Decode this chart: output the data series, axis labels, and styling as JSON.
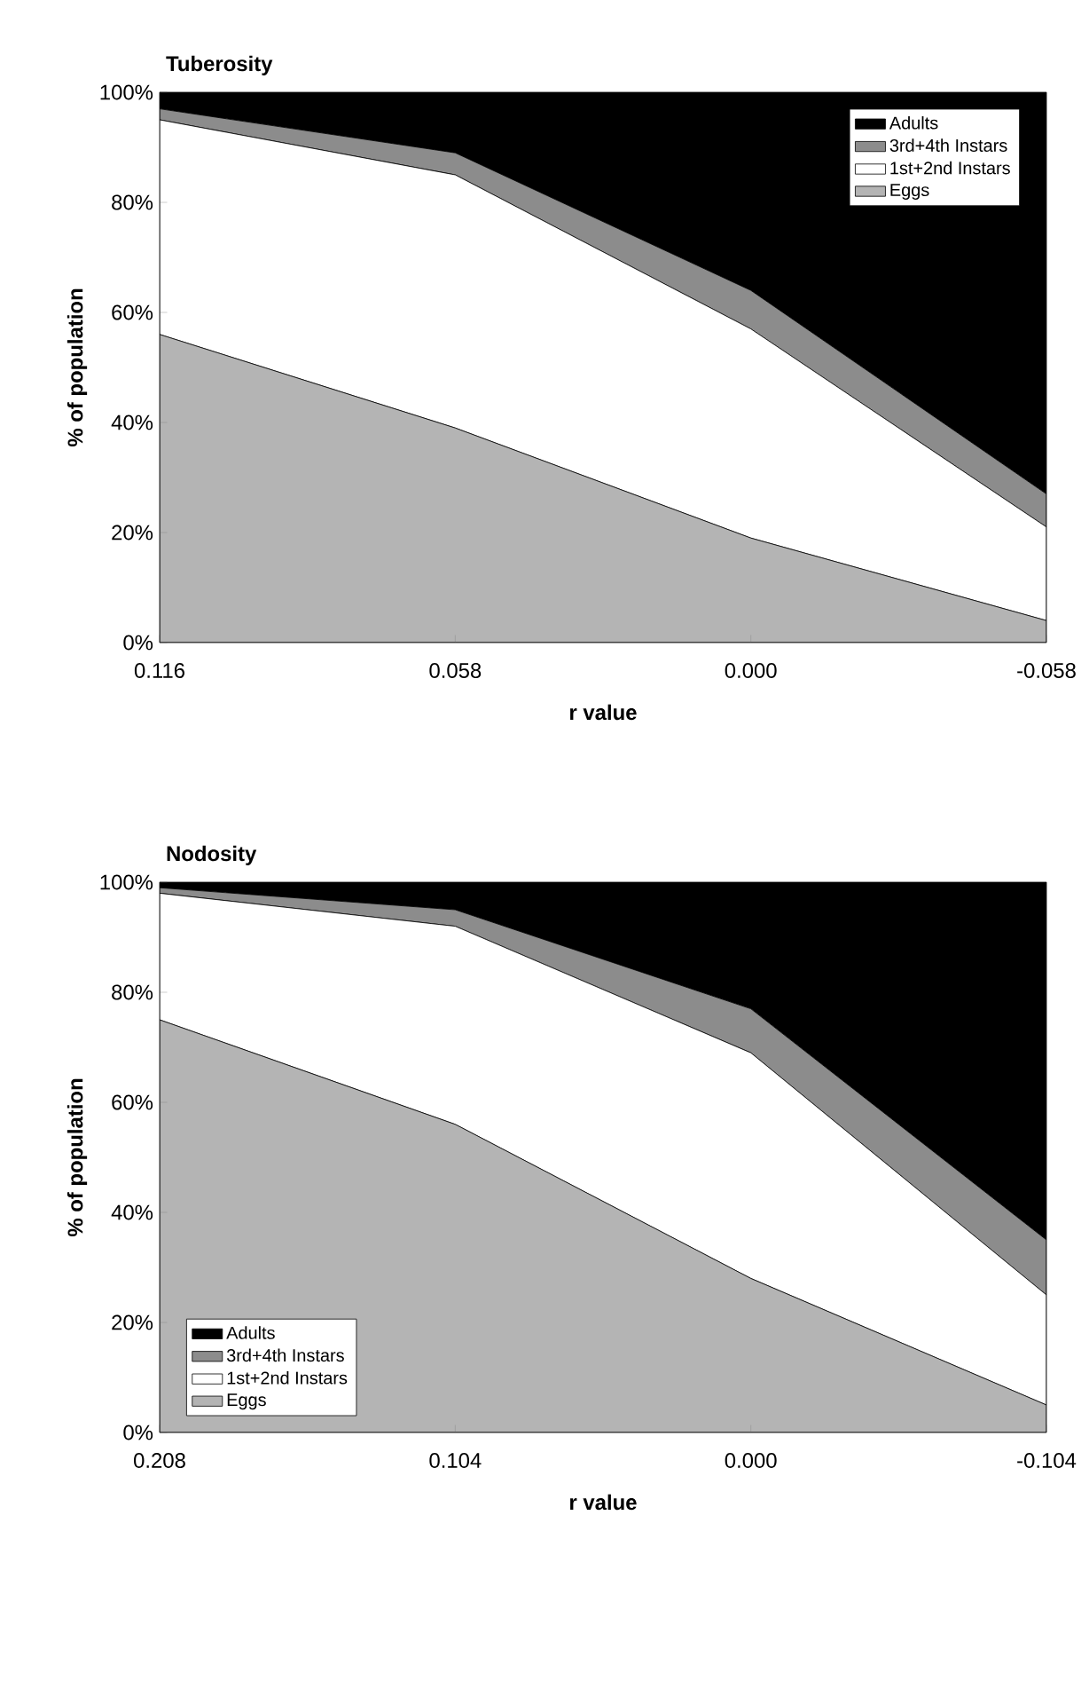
{
  "chart_data": [
    {
      "type": "area",
      "title": "Tuberosity",
      "xlabel": "r value",
      "ylabel": "% of population",
      "categories": [
        "0.116",
        "0.058",
        "0.000",
        "-0.058"
      ],
      "stacked": true,
      "legend": "top right",
      "ylim": [
        0,
        100
      ],
      "yticks": [
        {
          "value": 0,
          "label": "0%"
        },
        {
          "value": 20,
          "label": "20%"
        },
        {
          "value": 40,
          "label": "40%"
        },
        {
          "value": 60,
          "label": "60%"
        },
        {
          "value": 80,
          "label": "80%"
        },
        {
          "value": 100,
          "label": "100%"
        }
      ],
      "series": [
        {
          "name": "Eggs",
          "color": "#b4b4b4",
          "values": [
            56,
            39,
            19,
            4
          ]
        },
        {
          "name": "1st+2nd Instars",
          "color": "#ffffff",
          "values": [
            39,
            46,
            38,
            17
          ]
        },
        {
          "name": "3rd+4th Instars",
          "color": "#8c8c8c",
          "values": [
            2,
            4,
            7,
            6
          ]
        },
        {
          "name": "Adults",
          "color": "#000000",
          "values": [
            3,
            11,
            36,
            73
          ]
        }
      ]
    },
    {
      "type": "area",
      "title": "Nodosity",
      "xlabel": "r value",
      "ylabel": "% of population",
      "categories": [
        "0.208",
        "0.104",
        "0.000",
        "-0.104"
      ],
      "stacked": true,
      "legend": "bottom left",
      "ylim": [
        0,
        100
      ],
      "yticks": [
        {
          "value": 0,
          "label": "0%"
        },
        {
          "value": 20,
          "label": "20%"
        },
        {
          "value": 40,
          "label": "40%"
        },
        {
          "value": 60,
          "label": "60%"
        },
        {
          "value": 80,
          "label": "80%"
        },
        {
          "value": 100,
          "label": "100%"
        }
      ],
      "series": [
        {
          "name": "Eggs",
          "color": "#b4b4b4",
          "values": [
            75,
            56,
            28,
            5
          ]
        },
        {
          "name": "1st+2nd Instars",
          "color": "#ffffff",
          "values": [
            23,
            36,
            41,
            20
          ]
        },
        {
          "name": "3rd+4th Instars",
          "color": "#8c8c8c",
          "values": [
            1,
            3,
            8,
            10
          ]
        },
        {
          "name": "Adults",
          "color": "#000000",
          "values": [
            1,
            5,
            23,
            65
          ]
        }
      ]
    }
  ]
}
